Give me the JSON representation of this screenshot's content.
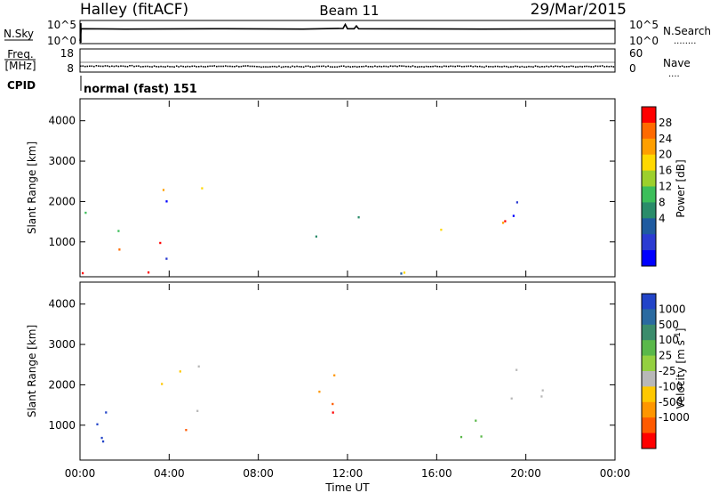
{
  "header": {
    "station": "Halley (fitACF)",
    "beam": "Beam 11",
    "date": "29/Mar/2015"
  },
  "chart_data": [
    {
      "type": "line",
      "left_label": "N.Sky",
      "right_label": "N.Search",
      "right_label_dots": "........",
      "left_ticks": [
        "10^5",
        "10^0"
      ],
      "right_ticks": [
        "10^5",
        "10^0"
      ],
      "series": [
        {
          "values": [
            {
              "t": 0.0,
              "v": 0.3
            },
            {
              "t": 0.05,
              "v": 4.2
            },
            {
              "t": 2.0,
              "v": 4.1
            },
            {
              "t": 6.0,
              "v": 4.2
            },
            {
              "t": 10.0,
              "v": 4.1
            },
            {
              "t": 11.8,
              "v": 4.3
            },
            {
              "t": 11.9,
              "v": 5.6
            },
            {
              "t": 12.0,
              "v": 4.2
            },
            {
              "t": 12.3,
              "v": 4.2
            },
            {
              "t": 12.4,
              "v": 5.1
            },
            {
              "t": 12.5,
              "v": 4.2
            },
            {
              "t": 18.0,
              "v": 4.1
            },
            {
              "t": 24.0,
              "v": 4.2
            }
          ]
        }
      ]
    },
    {
      "type": "scatter",
      "left_label_top": "Freq.",
      "left_label_bottom": "[MHz]",
      "right_label": "Nave",
      "right_label_dots": "....",
      "left_ticks": [
        "18",
        "8"
      ],
      "right_ticks": [
        "60",
        "0"
      ],
      "ylim": [
        8,
        18
      ],
      "series": [
        {
          "values": [
            {
              "t": 0.5,
              "v": 10.2
            },
            {
              "t": 2.5,
              "v": 10.0
            },
            {
              "t": 5.0,
              "v": 10.1
            },
            {
              "t": 7.5,
              "v": 9.9
            },
            {
              "t": 10.0,
              "v": 10.0
            },
            {
              "t": 12.5,
              "v": 10.1
            },
            {
              "t": 15.0,
              "v": 10.0
            },
            {
              "t": 17.5,
              "v": 9.9
            },
            {
              "t": 20.0,
              "v": 10.0
            },
            {
              "t": 22.5,
              "v": 10.1
            }
          ]
        }
      ]
    },
    {
      "type": "heatmap",
      "cpid_label": "CPID",
      "cpid_text": "normal (fast) 151",
      "ylabel": "Slant Range [km]",
      "y_ticks": [
        "4000",
        "3000",
        "2000",
        "1000"
      ],
      "ylim": [
        180,
        4500
      ],
      "xlim": [
        0,
        24
      ],
      "colorbar": {
        "label": "Power [dB]",
        "ticks": [
          "28",
          "24",
          "20",
          "16",
          "12",
          "8",
          "4"
        ],
        "colors": [
          "#ff0000",
          "#ff6a00",
          "#ff9f00",
          "#ffd800",
          "#9cd02c",
          "#3cbe5a",
          "#2a8c6a",
          "#1f5ba0",
          "#2b3bd2",
          "#0000ff"
        ]
      },
      "regions": [
        {
          "t0": 0.0,
          "t1": 2.2,
          "r0": 230,
          "r1": 2050,
          "level": "mixed-high"
        },
        {
          "t0": 3.2,
          "t1": 5.6,
          "r0": 230,
          "r1": 2500,
          "level": "mixed"
        },
        {
          "t0": 9.8,
          "t1": 11.0,
          "r0": 800,
          "r1": 1500,
          "level": "low"
        },
        {
          "t0": 11.0,
          "t1": 12.6,
          "r0": 1300,
          "r1": 2300,
          "level": "mid"
        },
        {
          "t0": 15.8,
          "t1": 19.2,
          "r0": 700,
          "r1": 1600,
          "level": "mixed-high"
        },
        {
          "t0": 18.8,
          "t1": 21.3,
          "r0": 1500,
          "r1": 2450,
          "level": "low"
        },
        {
          "t0": 0.0,
          "t1": 24.0,
          "r0": 200,
          "r1": 330,
          "level": "mixed"
        }
      ]
    },
    {
      "type": "heatmap",
      "ylabel": "Slant Range [km]",
      "y_ticks": [
        "4000",
        "3000",
        "2000",
        "1000"
      ],
      "ylim": [
        180,
        4500
      ],
      "xlim": [
        0,
        24
      ],
      "x_ticks": [
        "00:00",
        "04:00",
        "08:00",
        "12:00",
        "16:00",
        "20:00",
        "00:00"
      ],
      "xlabel": "Time UT",
      "colorbar": {
        "label": "Velocity [m s",
        "label_sup": "-1",
        "label_end": "]",
        "ticks": [
          "1000",
          "500",
          "100",
          "25",
          "-25",
          "-100",
          "-500",
          "-1000"
        ],
        "colors": [
          "#2244c8",
          "#2a6aa0",
          "#3b8c6c",
          "#5ab84a",
          "#94d040",
          "#b8b8b8",
          "#ffc800",
          "#ff9600",
          "#ff5a00",
          "#ff0000"
        ]
      },
      "regions": [
        {
          "t0": 0.0,
          "t1": 2.2,
          "r0": 230,
          "r1": 2050,
          "level": "positive"
        },
        {
          "t0": 3.2,
          "t1": 5.6,
          "r0": 230,
          "r1": 2500,
          "level": "negative"
        },
        {
          "t0": 9.8,
          "t1": 12.6,
          "r0": 800,
          "r1": 2300,
          "level": "strong-negative"
        },
        {
          "t0": 15.8,
          "t1": 19.2,
          "r0": 700,
          "r1": 1800,
          "level": "green"
        },
        {
          "t0": 16.5,
          "t1": 21.3,
          "r0": 1600,
          "r1": 2550,
          "level": "near-zero"
        }
      ]
    }
  ]
}
